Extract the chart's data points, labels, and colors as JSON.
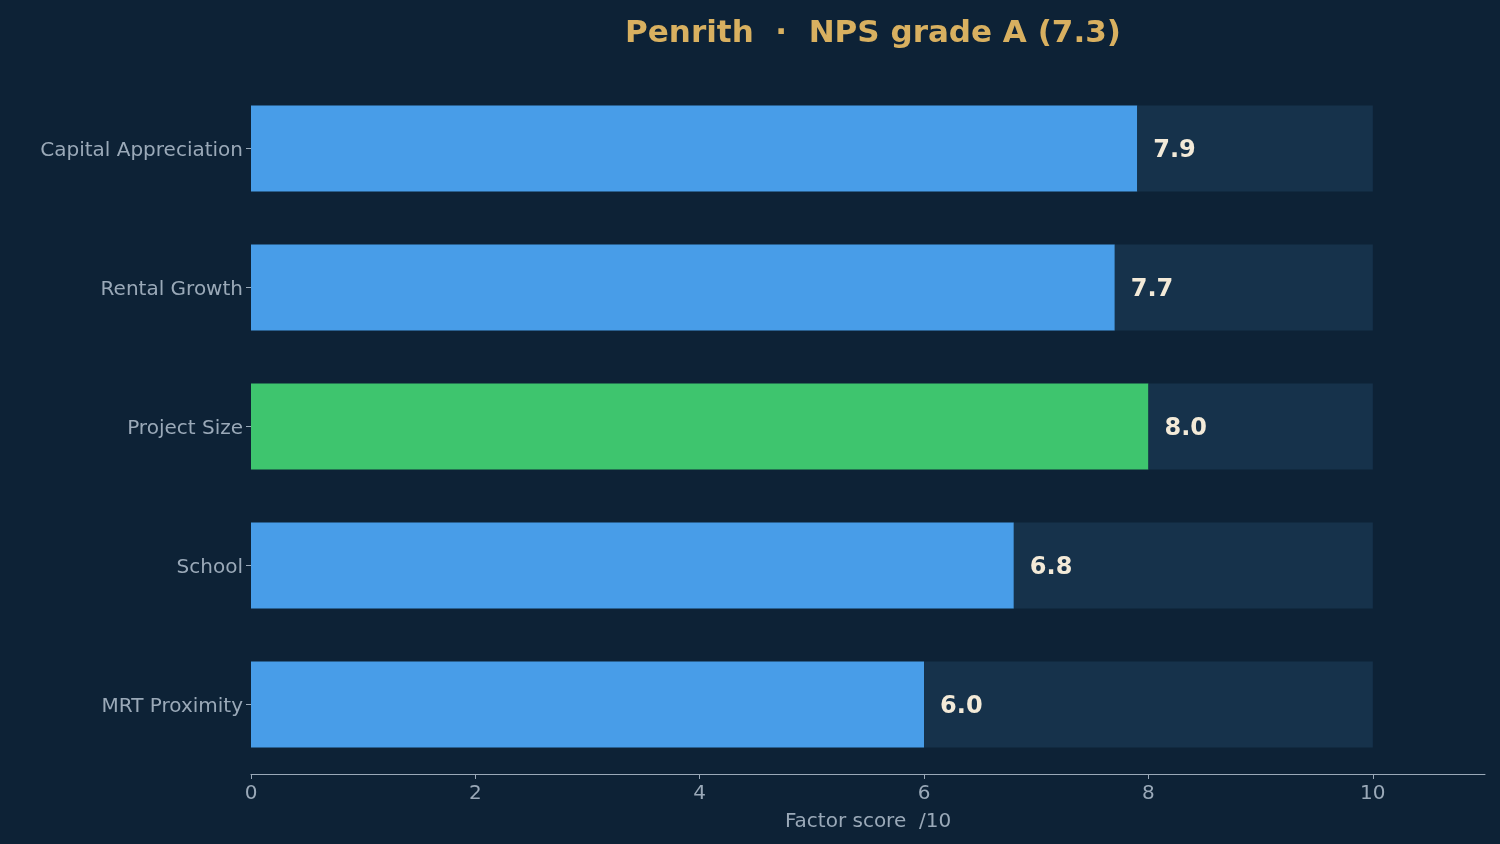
{
  "chart_data": {
    "type": "bar",
    "orientation": "horizontal",
    "stacked": true,
    "title": "Penrith  ·  NPS grade A (7.3)",
    "xlabel": "Factor score  /10",
    "categories": [
      "Capital Appreciation",
      "Rental Growth",
      "Project Size",
      "School",
      "MRT Proximity"
    ],
    "series": [
      {
        "colors": [
          "#489de8",
          "#489de8",
          "#3ec56e",
          "#489de8",
          "#489de8"
        ],
        "values": [
          7.9,
          7.7,
          8.0,
          6.8,
          6.0
        ],
        "value_labels": [
          "7.9",
          "7.7",
          "8.0",
          "6.8",
          "6.0"
        ]
      },
      {
        "color": "#16324b",
        "values": [
          2.1,
          2.3,
          2.0,
          3.2,
          4.0
        ]
      }
    ],
    "xlim": [
      0,
      11
    ],
    "xticks": [
      0,
      2,
      4,
      6,
      8,
      10
    ],
    "grid": false
  }
}
